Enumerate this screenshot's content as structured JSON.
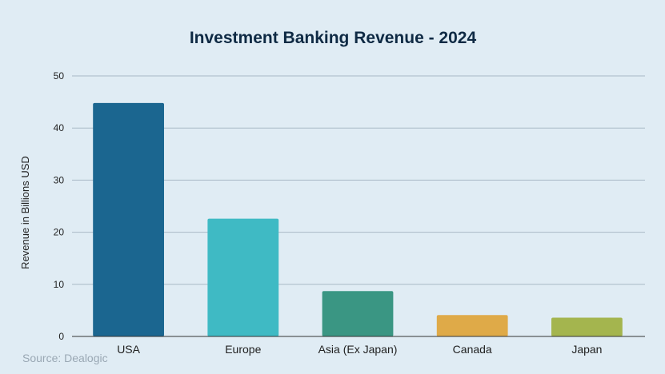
{
  "chart_data": {
    "type": "bar",
    "title": "Investment Banking Revenue - 2024",
    "ylabel": "Revenue in Billions USD",
    "xlabel": "",
    "categories": [
      "USA",
      "Europe",
      "Asia (Ex Japan)",
      "Canada",
      "Japan"
    ],
    "values": [
      44.8,
      22.6,
      8.7,
      4.1,
      3.6
    ],
    "colors": [
      "#1b6690",
      "#3fbac4",
      "#3a9683",
      "#dfaa48",
      "#a4b54e"
    ],
    "ylim": [
      0,
      50
    ],
    "yticks": [
      0,
      10,
      20,
      30,
      40,
      50
    ],
    "grid": true,
    "source": "Source: Dealogic"
  }
}
